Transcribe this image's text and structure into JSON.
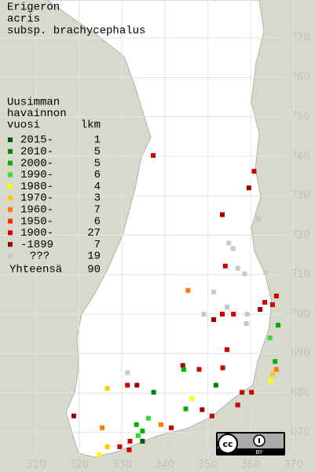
{
  "title_lines": [
    "Erigeron",
    "acris",
    "subsp. brachycephalus"
  ],
  "legend": {
    "header_lines": [
      "Uusimman",
      "havainnon",
      "vuosi"
    ],
    "count_header": "lkm",
    "rows": [
      {
        "label": "2015-",
        "count": 1,
        "color": "#005a00"
      },
      {
        "label": "2010-",
        "count": 5,
        "color": "#008000"
      },
      {
        "label": "2000-",
        "count": 5,
        "color": "#00b000"
      },
      {
        "label": "1990-",
        "count": 6,
        "color": "#30e030"
      },
      {
        "label": "1980-",
        "count": 4,
        "color": "#ffff00"
      },
      {
        "label": "1970-",
        "count": 3,
        "color": "#ffc800"
      },
      {
        "label": "1960-",
        "count": 7,
        "color": "#ff7800"
      },
      {
        "label": "1950-",
        "count": 6,
        "color": "#ff2800"
      },
      {
        "label": "1900-",
        "count": 27,
        "color": "#d00000"
      },
      {
        "label": "-1899",
        "count": 7,
        "color": "#a00000"
      },
      {
        "label": "???",
        "count": 19,
        "color": "#c8c8c8"
      }
    ],
    "total_label": "Yhteensä",
    "total": 90
  },
  "grid": {
    "yticks": [
      770,
      760,
      750,
      740,
      730,
      720,
      710,
      700,
      690,
      680,
      670
    ],
    "xticks": [
      310,
      320,
      330,
      340,
      350,
      360,
      370
    ],
    "xlim": [
      301.6,
      375
    ],
    "ylim": [
      660,
      779.6
    ]
  },
  "license_badge": "BY",
  "observations": [
    [
      337.3,
      740.2,
      8
    ],
    [
      360.8,
      736.2,
      8
    ],
    [
      359.6,
      732,
      9
    ],
    [
      353.4,
      725.2,
      9
    ],
    [
      361.8,
      724.2,
      10
    ],
    [
      354.9,
      718,
      10
    ],
    [
      355.9,
      716.6,
      10
    ],
    [
      354.1,
      712.2,
      8
    ],
    [
      357,
      711.6,
      10
    ],
    [
      358.6,
      710.2,
      10
    ],
    [
      363.5,
      710.6,
      10
    ],
    [
      345.4,
      706,
      6
    ],
    [
      351.4,
      705.6,
      10
    ],
    [
      363.3,
      703,
      8
    ],
    [
      365.1,
      702.4,
      8
    ],
    [
      366,
      704.6,
      8
    ],
    [
      362.2,
      701.2,
      9
    ],
    [
      354.5,
      701.8,
      10
    ],
    [
      349.1,
      700,
      10
    ],
    [
      353.4,
      700,
      8
    ],
    [
      356,
      700,
      8
    ],
    [
      359.2,
      700,
      10
    ],
    [
      359,
      697.6,
      10
    ],
    [
      351.4,
      698.6,
      9
    ],
    [
      366.4,
      697.2,
      2
    ],
    [
      364.5,
      694,
      3
    ],
    [
      354.5,
      691,
      8
    ],
    [
      365.7,
      688,
      2
    ],
    [
      366,
      686,
      6
    ],
    [
      365.1,
      684.8,
      5
    ],
    [
      364.7,
      683,
      4
    ],
    [
      344.2,
      687,
      9
    ],
    [
      344.4,
      686,
      2
    ],
    [
      348,
      686,
      8
    ],
    [
      353.5,
      686.4,
      8
    ],
    [
      351.9,
      682,
      1
    ],
    [
      331.3,
      685.2,
      10
    ],
    [
      331.3,
      682,
      8
    ],
    [
      333.5,
      682,
      9
    ],
    [
      337.4,
      680.2,
      1
    ],
    [
      326.6,
      681.2,
      5
    ],
    [
      346.3,
      678.6,
      4
    ],
    [
      344.9,
      676,
      2
    ],
    [
      358,
      680.2,
      8
    ],
    [
      360.2,
      680.2,
      8
    ],
    [
      357,
      677,
      8
    ],
    [
      351,
      674.2,
      8
    ],
    [
      348.7,
      675.8,
      9
    ],
    [
      318.8,
      674.2,
      9
    ],
    [
      325.4,
      671.2,
      6
    ],
    [
      339.1,
      672,
      6
    ],
    [
      341.5,
      671.2,
      8
    ],
    [
      336.2,
      673.6,
      3
    ],
    [
      333.4,
      672,
      2
    ],
    [
      334.8,
      670.4,
      2
    ],
    [
      333.8,
      669.2,
      3
    ],
    [
      334.8,
      667.8,
      0
    ],
    [
      331.9,
      667.8,
      8
    ],
    [
      329.5,
      666.4,
      8
    ],
    [
      324.7,
      664.4,
      4
    ],
    [
      326.6,
      666.4,
      5
    ],
    [
      331.7,
      665.6,
      8
    ]
  ]
}
